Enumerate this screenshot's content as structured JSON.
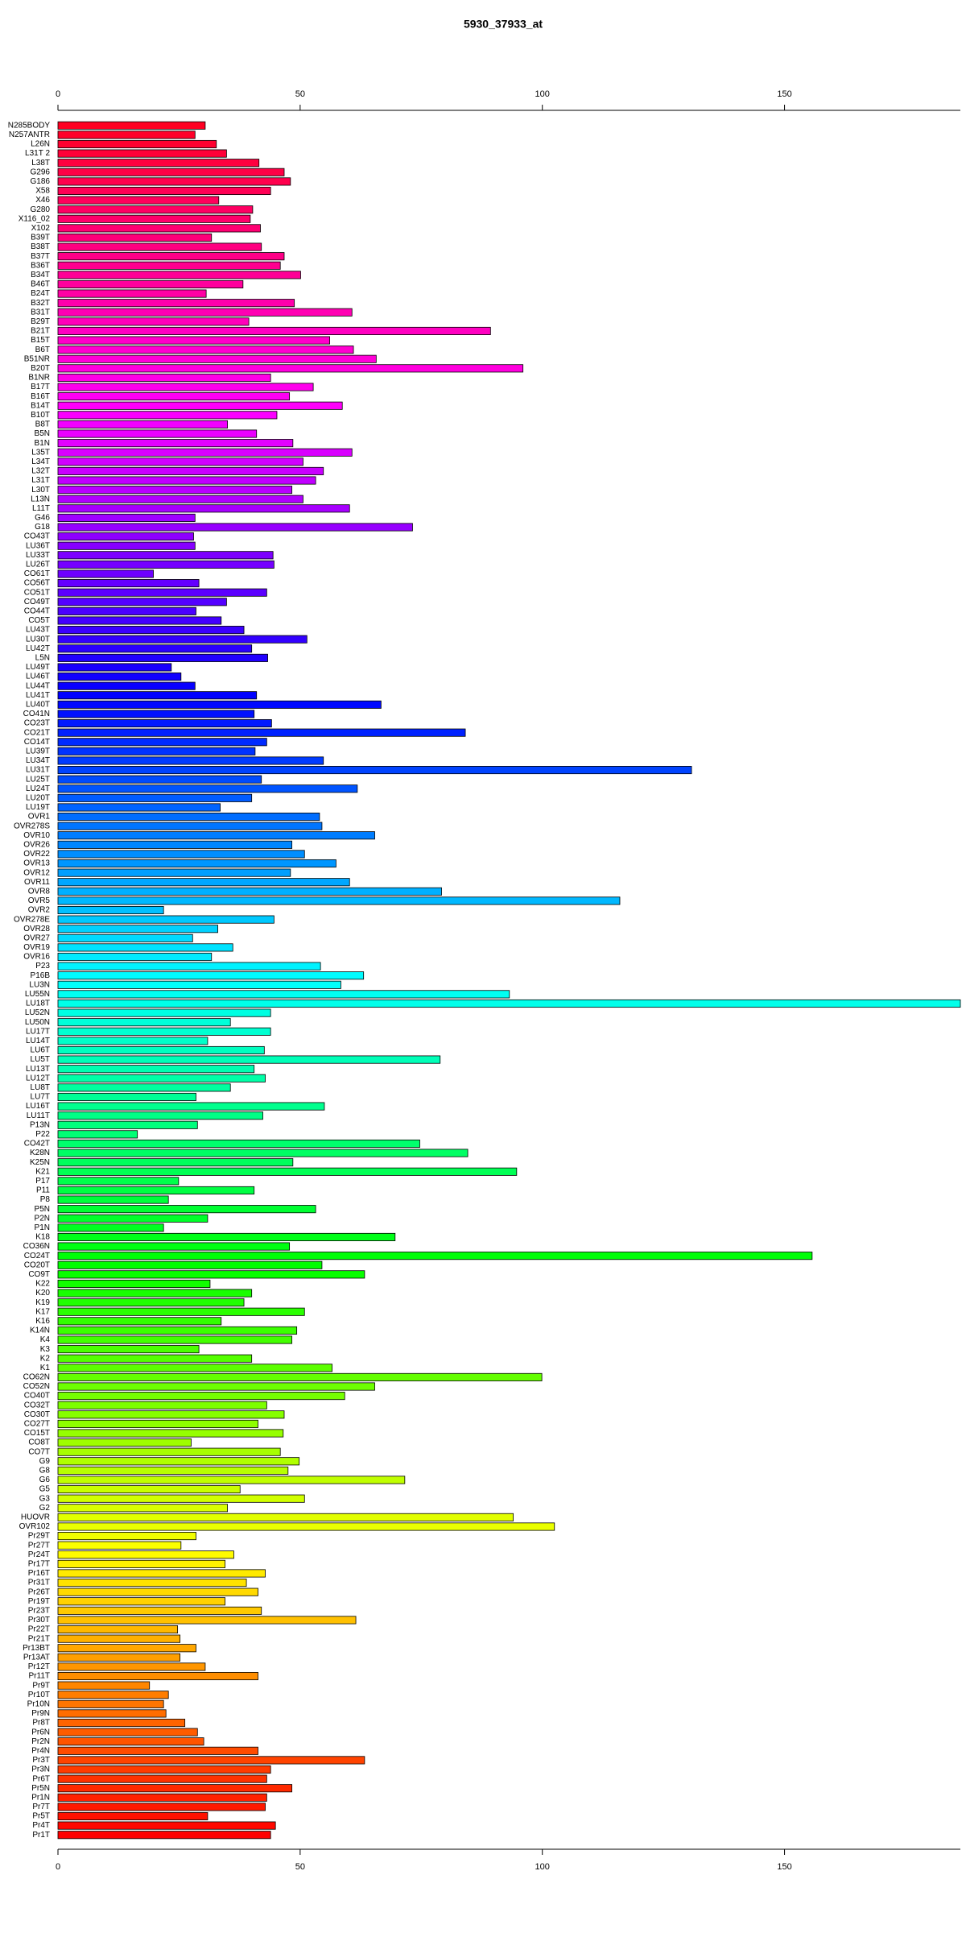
{
  "chart_data": {
    "type": "hbar",
    "title": "5930_37933_at",
    "categories": [
      "N285BODY",
      "N257ANTR",
      "L26N",
      "L31T 2",
      "L38T",
      "G296",
      "G186",
      "X58",
      "X46",
      "G280",
      "X116_02",
      "X102",
      "B39T",
      "B38T",
      "B37T",
      "B36T",
      "B34T",
      "B46T",
      "B24T",
      "B32T",
      "B31T",
      "B29T",
      "B21T",
      "B15T",
      "B6T",
      "B51NR",
      "B20T",
      "B1NR",
      "B17T",
      "B16T",
      "B14T",
      "B10T",
      "B8T",
      "B5N",
      "B1N",
      "L35T",
      "L34T",
      "L32T",
      "L31T",
      "L30T",
      "L13N",
      "L11T",
      "G46",
      "G18",
      "CO43T",
      "LU36T",
      "LU33T",
      "LU26T",
      "CO61T",
      "CO56T",
      "CO51T",
      "CO49T",
      "CO44T",
      "CO5T",
      "LU43T",
      "LU30T",
      "LU42T",
      "L5N",
      "LU49T",
      "LU46T",
      "LU44T",
      "LU41T",
      "LU40T",
      "CO41N",
      "CO23T",
      "CO21T",
      "CO14T",
      "LU39T",
      "LU34T",
      "LU31T",
      "LU25T",
      "LU24T",
      "LU20T",
      "LU19T",
      "OVR1",
      "OVR278S",
      "OVR10",
      "OVR26",
      "OVR22",
      "OVR13",
      "OVR12",
      "OVR11",
      "OVR8",
      "OVR5",
      "OVR2",
      "OVR278E",
      "OVR28",
      "OVR27",
      "OVR19",
      "OVR16",
      "P23",
      "P16B",
      "LU3N",
      "LU55N",
      "LU18T",
      "LU52N",
      "LU50N",
      "LU17T",
      "LU14T",
      "LU6T",
      "LU5T",
      "LU13T",
      "LU12T",
      "LU8T",
      "LU7T",
      "LU16T",
      "LU11T",
      "P13N",
      "P22",
      "CO42T",
      "K28N",
      "K25N",
      "K21",
      "P17",
      "P11",
      "P8",
      "P5N",
      "P2N",
      "P1N",
      "K18",
      "CO36N",
      "CO24T",
      "CO20T",
      "CO9T",
      "K22",
      "K20",
      "K19",
      "K17",
      "K16",
      "K14N",
      "K4",
      "K3",
      "K2",
      "K1",
      "CO62N",
      "CO52N",
      "CO40T",
      "CO32T",
      "CO30T",
      "CO27T",
      "CO15T",
      "CO8T",
      "CO7T",
      "G9",
      "G8",
      "G6",
      "G5",
      "G3",
      "G2",
      "HUOVR",
      "OVR102",
      "Pr29T",
      "Pr27T",
      "Pr24T",
      "Pr17T",
      "Pr16T",
      "Pr31T",
      "Pr26T",
      "Pr19T",
      "Pr23T",
      "Pr30T",
      "Pr22T",
      "Pr21T",
      "Pr13BT",
      "Pr13AT",
      "Pr12T",
      "Pr11T",
      "Pr9T",
      "Pr10T",
      "Pr10N",
      "Pr9N",
      "Pr8T",
      "Pr6N",
      "Pr2N",
      "Pr4N",
      "Pr3T",
      "Pr3N",
      "Pr6T",
      "Pr5N",
      "Pr1N",
      "Pr7T",
      "Pr5T",
      "Pr4T",
      "Pr1T"
    ],
    "values": [
      30.4,
      28.3,
      32.7,
      34.8,
      41.5,
      46.7,
      48.0,
      43.9,
      33.2,
      40.2,
      39.7,
      41.8,
      31.7,
      42.0,
      46.7,
      45.9,
      50.1,
      38.2,
      30.6,
      48.8,
      60.7,
      39.4,
      89.3,
      56.1,
      61.0,
      65.7,
      96.0,
      43.9,
      52.7,
      47.8,
      58.7,
      45.2,
      35.0,
      41.0,
      48.5,
      60.7,
      50.6,
      54.8,
      53.2,
      48.3,
      50.6,
      60.2,
      28.3,
      73.2,
      28.0,
      28.3,
      44.4,
      44.6,
      19.7,
      29.1,
      43.1,
      34.8,
      28.5,
      33.7,
      38.4,
      51.4,
      40.0,
      43.3,
      23.4,
      25.4,
      28.3,
      41.0,
      66.7,
      40.5,
      44.1,
      84.1,
      43.1,
      40.7,
      54.8,
      130.8,
      42.0,
      61.8,
      40.0,
      33.5,
      54.0,
      54.5,
      65.4,
      48.3,
      50.9,
      57.4,
      48.0,
      60.2,
      79.2,
      116.0,
      21.8,
      44.6,
      33.0,
      27.8,
      36.1,
      31.7,
      54.2,
      63.1,
      58.4,
      93.2,
      186.3,
      43.9,
      35.6,
      43.9,
      30.9,
      42.6,
      78.9,
      40.5,
      42.8,
      35.6,
      28.5,
      55.0,
      42.3,
      28.8,
      16.4,
      74.7,
      84.6,
      48.5,
      94.7,
      24.9,
      40.5,
      22.8,
      53.2,
      30.9,
      21.8,
      69.6,
      47.8,
      155.7,
      54.5,
      63.3,
      31.4,
      40.0,
      38.4,
      50.9,
      33.7,
      49.3,
      48.3,
      29.1,
      40.0,
      56.6,
      99.9,
      65.4,
      59.2,
      43.1,
      46.7,
      41.3,
      46.5,
      27.5,
      45.9,
      49.8,
      47.5,
      71.6,
      37.6,
      50.9,
      35.0,
      94.0,
      102.5,
      28.5,
      25.4,
      36.3,
      34.5,
      42.8,
      38.9,
      41.3,
      34.5,
      42.0,
      61.5,
      24.7,
      25.2,
      28.5,
      25.2,
      30.4,
      41.3,
      18.9,
      22.8,
      21.8,
      22.3,
      26.2,
      28.8,
      30.1,
      41.3,
      63.3,
      43.9,
      43.1,
      48.3,
      43.1,
      42.8,
      30.9,
      44.9,
      43.9
    ],
    "color_scale": [
      "#ff0022",
      "#ff00ff",
      "#0000ff",
      "#00ffff",
      "#00ff00",
      "#ffff00",
      "#ff0000"
    ],
    "xlim": [
      0,
      186.3
    ],
    "xticks": [
      0,
      50,
      100,
      150
    ],
    "grid": false
  }
}
